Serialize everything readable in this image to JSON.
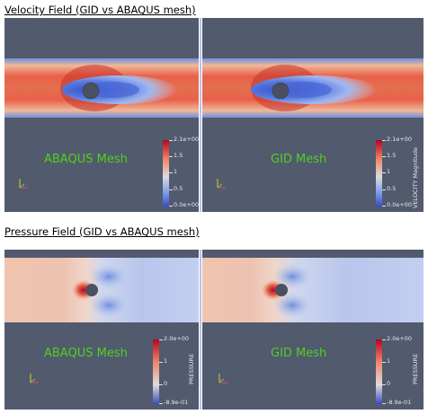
{
  "velocity": {
    "title": "Velocity Field (GID vs ABAQUS mesh)",
    "left_label": "ABAQUS Mesh",
    "right_label": "GID Mesh",
    "colorbar": {
      "title": "VELOCITY Magnitude",
      "ticks": [
        "2.1e+00",
        "1.5",
        "1",
        "0.5",
        "0.0e+00"
      ],
      "values": [
        2.1,
        1.5,
        1.0,
        0.5,
        0.0
      ],
      "min": 0.0,
      "max": 2.1
    }
  },
  "pressure": {
    "title": "Pressure Field (GID vs ABAQUS mesh)",
    "left_label": "ABAQUS Mesh",
    "right_label": "GID Mesh",
    "colorbar": {
      "title": "PRESSURE",
      "ticks": [
        "2.0e+00",
        "1",
        "0",
        "-8.9e-01"
      ],
      "values": [
        2.0,
        1.0,
        0.0,
        -0.89
      ],
      "min": -0.89,
      "max": 2.0
    }
  },
  "colors": {
    "background": "#525a6e",
    "label_green": "#4fd11e",
    "divider": "#b7c3ee",
    "colormap_high": "#b40426",
    "colormap_mid": "#dddcdc",
    "colormap_low": "#3b4cc0"
  },
  "icons": [
    "axes-triad-icon",
    "cylinder-obstacle-icon"
  ]
}
